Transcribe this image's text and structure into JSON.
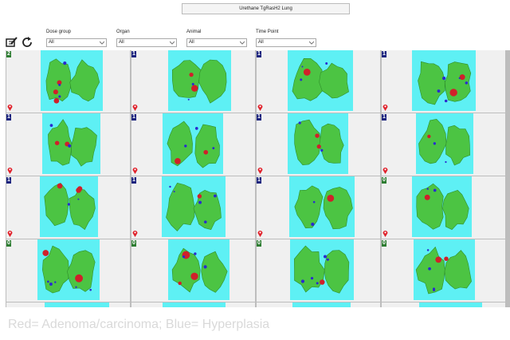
{
  "header": {
    "title": "Urethane TgRasH2 Lung"
  },
  "filters": [
    {
      "label": "Dose group",
      "value": "All"
    },
    {
      "label": "Organ",
      "value": "All"
    },
    {
      "label": "Animal",
      "value": "All"
    },
    {
      "label": "Time Point",
      "value": "All"
    }
  ],
  "tiles": [
    {
      "badge": "2",
      "color": "#2e7d32"
    },
    {
      "badge": "1",
      "color": "#1a237e"
    },
    {
      "badge": "1",
      "color": "#1a237e"
    },
    {
      "badge": "1",
      "color": "#1a237e"
    },
    {
      "badge": "1",
      "color": "#1a237e"
    },
    {
      "badge": "1",
      "color": "#1a237e"
    },
    {
      "badge": "1",
      "color": "#1a237e"
    },
    {
      "badge": "1",
      "color": "#1a237e"
    },
    {
      "badge": "1",
      "color": "#1a237e"
    },
    {
      "badge": "1",
      "color": "#1a237e"
    },
    {
      "badge": "1",
      "color": "#1a237e"
    },
    {
      "badge": "0",
      "color": "#2e7d32"
    },
    {
      "badge": "0",
      "color": "#2e7d32"
    },
    {
      "badge": "0",
      "color": "#2e7d32"
    },
    {
      "badge": "0",
      "color": "#2e7d32"
    },
    {
      "badge": "0",
      "color": "#2e7d32"
    }
  ],
  "caption": "Red= Adenoma/carcinoma; Blue= Hyperplasia"
}
